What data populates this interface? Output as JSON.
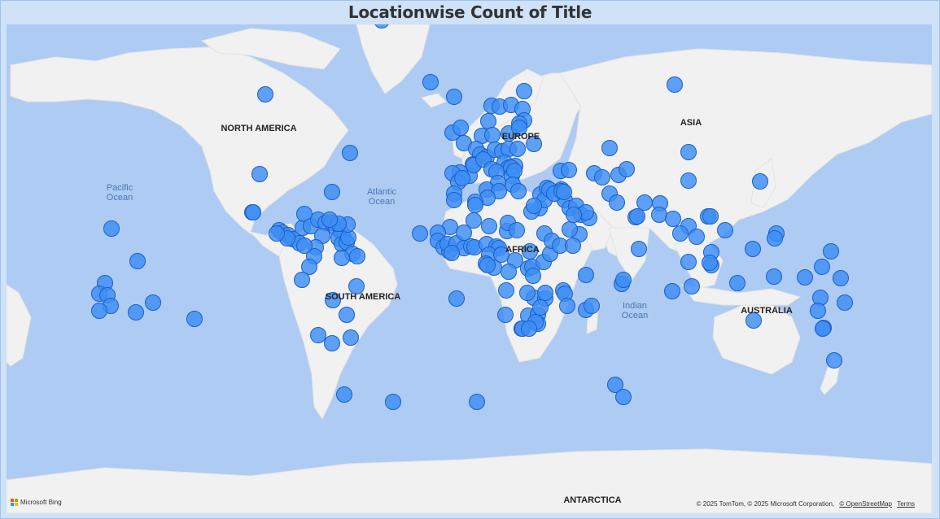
{
  "title": "Locationwise Count of Title",
  "map": {
    "continent_labels": [
      "NORTH AMERICA",
      "EUROPE",
      "ASIA",
      "AFRICA",
      "SOUTH AMERICA",
      "AUSTRALIA",
      "ANTARCTICA"
    ],
    "ocean_labels": {
      "pacific": [
        "Pacific",
        "Ocean"
      ],
      "atlantic": [
        "Atlantic",
        "Ocean"
      ],
      "indian": [
        "Indian",
        "Ocean"
      ]
    },
    "marker_color": "#3d8ef5",
    "marker_stroke": "#1a5fc8",
    "ocean_color": "#aecbf3",
    "land_color": "#f1f1f1"
  },
  "footer": {
    "logo_text": "Microsoft Bing",
    "attribution": "© 2025 TomTom, © 2025 Microsoft Corporation,",
    "osm_link": "© OpenStreetMap",
    "terms_link": "Terms"
  }
}
